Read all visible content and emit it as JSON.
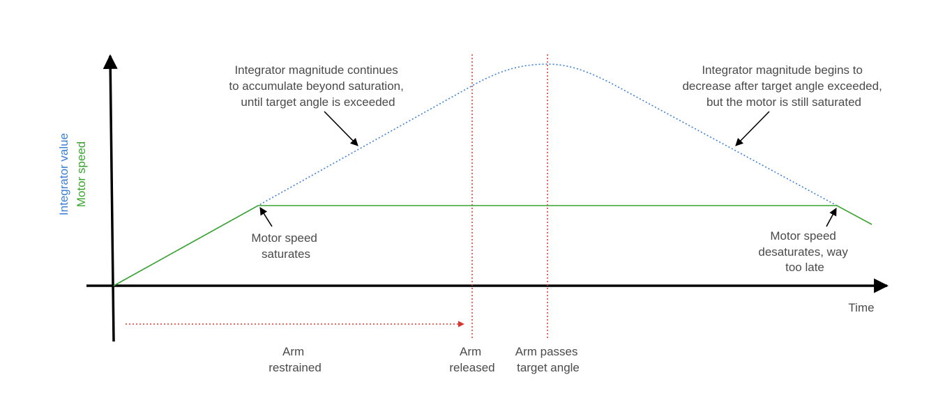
{
  "colors": {
    "integrator": "#3a7fd6",
    "motor": "#3aa32f",
    "event_marker": "#d9352a",
    "axis": "#000000",
    "annotation_text": "#4a4a4a"
  },
  "axes": {
    "y_label_integrator": "Integrator value",
    "y_label_motor": "Motor speed",
    "x_label": "Time"
  },
  "annotations": {
    "integrator_accumulates": [
      "Integrator magnitude continues",
      "to accumulate beyond saturation,",
      "until target angle is exceeded"
    ],
    "integrator_decreases": [
      "Integrator magnitude begins to",
      "decrease after target angle exceeded,",
      "but the motor is still saturated"
    ],
    "motor_saturates": [
      "Motor speed",
      "saturates"
    ],
    "motor_desaturates": [
      "Motor speed",
      "desaturates, way",
      "too late"
    ]
  },
  "events": {
    "arm_restrained": [
      "Arm",
      "restrained"
    ],
    "arm_released": [
      "Arm",
      "released"
    ],
    "arm_passes_target": [
      "Arm passes",
      "target angle"
    ]
  }
}
